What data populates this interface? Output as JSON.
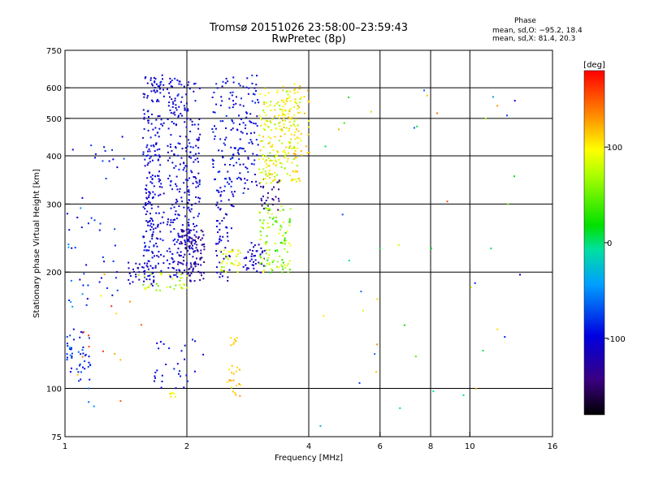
{
  "header": {
    "title_line1": "Tromsø 20151026 23:58:00–23:59:43",
    "title_line2": "RwPretec (8p)",
    "phase_title": "Phase",
    "phase_o": "mean, sd,O: −95.2, 18.4",
    "phase_x": "mean, sd,X:  81.4, 20.3"
  },
  "chart_data": {
    "type": "scatter",
    "xlabel": "Frequency [MHz]",
    "ylabel": "Stationary phase Virtual Height [km]",
    "x_scale": "log",
    "y_scale": "log",
    "xlim": [
      1,
      16
    ],
    "ylim": [
      75,
      750
    ],
    "x_ticks": [
      {
        "value": 1,
        "label": "1"
      },
      {
        "value": 2,
        "label": "2"
      },
      {
        "value": 4,
        "label": "4"
      },
      {
        "value": 6,
        "label": "6"
      },
      {
        "value": 8,
        "label": "8"
      },
      {
        "value": 10,
        "label": "10"
      },
      {
        "value": 16,
        "label": "16"
      }
    ],
    "x_gridlines": [
      2,
      4,
      6,
      8,
      10
    ],
    "y_ticks": [
      {
        "value": 75,
        "label": "75"
      },
      {
        "value": 100,
        "label": "100"
      },
      {
        "value": 200,
        "label": "200"
      },
      {
        "value": 300,
        "label": "300"
      },
      {
        "value": 400,
        "label": "400"
      },
      {
        "value": 500,
        "label": "500"
      },
      {
        "value": 600,
        "label": "600"
      },
      {
        "value": 750,
        "label": "750"
      }
    ],
    "y_gridlines": [
      100,
      200,
      300,
      400,
      500,
      600
    ],
    "grid": true,
    "colorbar": {
      "label": "[deg]",
      "range": [
        -180,
        180
      ],
      "ticks": [
        {
          "value": 100,
          "label": "100"
        },
        {
          "value": 0,
          "label": "0"
        },
        {
          "value": -100,
          "label": "-100"
        }
      ]
    },
    "series": [
      {
        "mode": "O",
        "clusters": [
          {
            "f": [
              1.55,
              1.75
            ],
            "h": [
              200,
              650
            ],
            "phase": [
              -120,
              -85
            ],
            "n": 230
          },
          {
            "f": [
              1.78,
              2.15
            ],
            "h": [
              195,
              640
            ],
            "phase": [
              -120,
              -85
            ],
            "n": 300
          },
          {
            "f": [
              1.9,
              2.2
            ],
            "h": [
              190,
              260
            ],
            "phase": [
              -150,
              -120
            ],
            "n": 90
          },
          {
            "f": [
              1.4,
              1.65
            ],
            "h": [
              185,
              215
            ],
            "phase": [
              -125,
              -95
            ],
            "n": 40
          },
          {
            "f": [
              2.3,
              3.0
            ],
            "h": [
              320,
              650
            ],
            "phase": [
              -115,
              -80
            ],
            "n": 180
          },
          {
            "f": [
              2.35,
              2.6
            ],
            "h": [
              190,
              330
            ],
            "phase": [
              -120,
              -95
            ],
            "n": 60
          },
          {
            "f": [
              2.7,
              3.1
            ],
            "h": [
              200,
              240
            ],
            "phase": [
              -120,
              -95
            ],
            "n": 40
          },
          {
            "f": [
              3.0,
              3.4
            ],
            "h": [
              290,
              350
            ],
            "phase": [
              -150,
              -120
            ],
            "n": 30
          },
          {
            "f": [
              1.0,
              1.15
            ],
            "h": [
              105,
              145
            ],
            "phase": [
              -100,
              -70
            ],
            "n": 45
          },
          {
            "f": [
              1.0,
              1.4
            ],
            "h": [
              160,
              460
            ],
            "phase": [
              -110,
              -70
            ],
            "n": 45
          },
          {
            "f": [
              1.6,
              2.2
            ],
            "h": [
              100,
              135
            ],
            "phase": [
              -110,
              -80
            ],
            "n": 30
          },
          {
            "f": [
              1.0,
              1.2
            ],
            "h": [
              82,
              300
            ],
            "phase": [
              -80,
              -40
            ],
            "n": 15
          }
        ]
      },
      {
        "mode": "X",
        "clusters": [
          {
            "f": [
              3.0,
              3.8
            ],
            "h": [
              340,
              600
            ],
            "phase": [
              60,
              120
            ],
            "n": 210
          },
          {
            "f": [
              3.4,
              4.0
            ],
            "h": [
              400,
              620
            ],
            "phase": [
              90,
              125
            ],
            "n": 60
          },
          {
            "f": [
              3.0,
              3.6
            ],
            "h": [
              200,
              300
            ],
            "phase": [
              20,
              100
            ],
            "n": 110
          },
          {
            "f": [
              2.4,
              2.7
            ],
            "h": [
              200,
              230
            ],
            "phase": [
              60,
              110
            ],
            "n": 35
          },
          {
            "f": [
              1.5,
              2.0
            ],
            "h": [
              180,
              200
            ],
            "phase": [
              40,
              100
            ],
            "n": 35
          },
          {
            "f": [
              2.5,
              2.7
            ],
            "h": [
              95,
              115
            ],
            "phase": [
              100,
              140
            ],
            "n": 20
          },
          {
            "f": [
              1.8,
              1.9
            ],
            "h": [
              95,
              98
            ],
            "phase": [
              90,
              110
            ],
            "n": 6
          },
          {
            "f": [
              2.55,
              2.65
            ],
            "h": [
              130,
              136
            ],
            "phase": [
              100,
              120
            ],
            "n": 8
          },
          {
            "f": [
              4.0,
              14.0
            ],
            "h": [
              80,
              620
            ],
            "phase": [
              -100,
              160
            ],
            "n": 45
          },
          {
            "f": [
              1.05,
              1.6
            ],
            "h": [
              90,
              200
            ],
            "phase": [
              100,
              180
            ],
            "n": 15
          }
        ]
      }
    ]
  }
}
